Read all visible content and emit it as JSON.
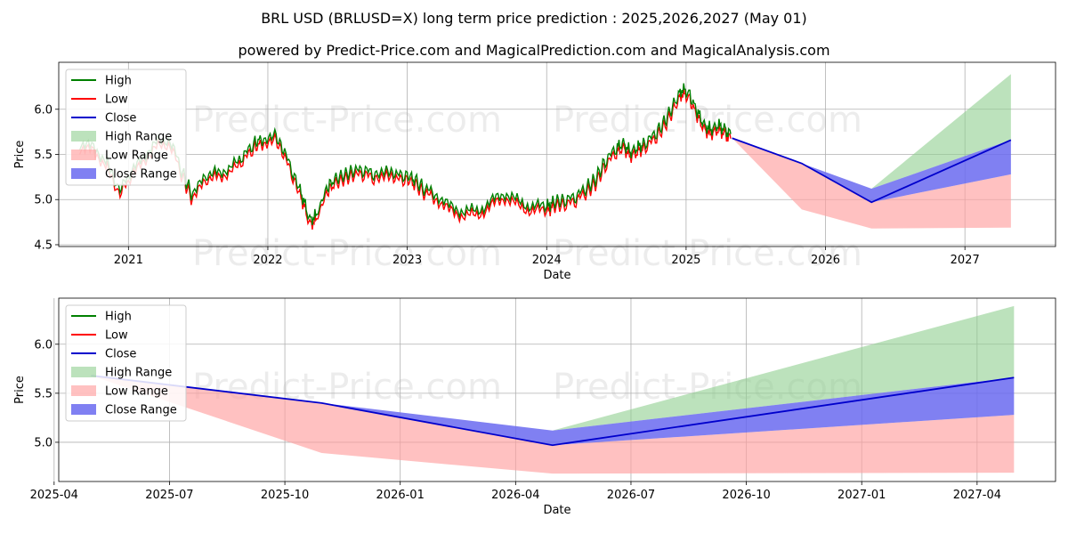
{
  "title": "BRL USD (BRLUSD=X) long term price prediction : 2025,2026,2027 (May 01)",
  "subtitle": "powered by Predict-Price.com and MagicalPrediction.com and MagicalAnalysis.com",
  "watermark": "Predict-Price.com",
  "colors": {
    "high": "#008000",
    "low": "#ff0000",
    "close": "#0000cc",
    "high_range": "#8fce8f",
    "low_range": "#ff9f9f",
    "close_range": "#6a6af0"
  },
  "chart_data": [
    {
      "type": "line",
      "title": "Historical prices and long term prediction",
      "xlabel": "Date",
      "ylabel": "Price",
      "xlim": [
        2020.5,
        2027.65
      ],
      "ylim": [
        4.48,
        6.52
      ],
      "x_ticks": [
        2021,
        2022,
        2023,
        2024,
        2025,
        2026,
        2027
      ],
      "x_tick_labels": [
        "2021",
        "2022",
        "2023",
        "2024",
        "2025",
        "2026",
        "2027"
      ],
      "y_ticks": [
        4.5,
        5.0,
        5.5,
        6.0
      ],
      "y_tick_labels": [
        "4.5",
        "5.0",
        "5.5",
        "6.0"
      ],
      "grid": true,
      "legend": [
        "High",
        "Low",
        "Close",
        "High Range",
        "Low Range",
        "Close Range"
      ],
      "legend_position": "top-left",
      "history": {
        "x": [
          2020.65,
          2020.75,
          2020.85,
          2020.92,
          2021.0,
          2021.1,
          2021.2,
          2021.3,
          2021.38,
          2021.45,
          2021.55,
          2021.62,
          2021.72,
          2021.82,
          2021.9,
          2021.96,
          2022.05,
          2022.12,
          2022.2,
          2022.25,
          2022.3,
          2022.35,
          2022.42,
          2022.48,
          2022.55,
          2022.62,
          2022.7,
          2022.78,
          2022.85,
          2022.92,
          2023.0,
          2023.05,
          2023.12,
          2023.2,
          2023.3,
          2023.4,
          2023.5,
          2023.6,
          2023.7,
          2023.8,
          2023.9,
          2024.0,
          2024.05,
          2024.12,
          2024.2,
          2024.28,
          2024.35,
          2024.42,
          2024.5,
          2024.55,
          2024.6,
          2024.65,
          2024.7,
          2024.78,
          2024.85,
          2024.92,
          2024.97,
          2025.02,
          2025.08,
          2025.13,
          2025.18,
          2025.23,
          2025.28,
          2025.32
        ],
        "close": [
          5.6,
          5.55,
          5.4,
          5.1,
          5.2,
          5.45,
          5.6,
          5.65,
          5.3,
          5.05,
          5.2,
          5.3,
          5.3,
          5.45,
          5.6,
          5.65,
          5.7,
          5.5,
          5.2,
          5.0,
          4.75,
          4.8,
          5.1,
          5.2,
          5.25,
          5.3,
          5.3,
          5.25,
          5.3,
          5.25,
          5.25,
          5.2,
          5.1,
          5.05,
          4.9,
          4.85,
          4.85,
          4.95,
          5.05,
          4.95,
          4.9,
          4.9,
          4.95,
          4.97,
          5.0,
          5.1,
          5.2,
          5.4,
          5.55,
          5.6,
          5.5,
          5.55,
          5.6,
          5.7,
          5.85,
          6.05,
          6.2,
          6.15,
          5.95,
          5.8,
          5.75,
          5.8,
          5.75,
          5.7
        ],
        "spread": 0.05
      },
      "forecast": {
        "x": [
          2025.33,
          2025.83,
          2026.33,
          2027.33
        ],
        "close": [
          5.68,
          5.4,
          4.97,
          5.66
        ],
        "high_range_upper": [
          5.68,
          5.4,
          5.12,
          6.39
        ],
        "close_range_upper": [
          5.68,
          5.4,
          5.12,
          5.66
        ],
        "close_range_lower": [
          5.68,
          5.4,
          4.97,
          5.28
        ],
        "low_range_lower": [
          5.68,
          4.89,
          4.68,
          4.69
        ]
      }
    },
    {
      "type": "area",
      "title": "Prediction detail",
      "xlabel": "Date",
      "ylabel": "Price",
      "xlim": [
        2025.26,
        2027.42
      ],
      "ylim": [
        4.6,
        6.47
      ],
      "x_ticks": [
        2025.25,
        2025.5,
        2025.75,
        2026.0,
        2026.25,
        2026.5,
        2026.75,
        2027.0,
        2027.25
      ],
      "x_tick_labels": [
        "2025-04",
        "2025-07",
        "2025-10",
        "2026-01",
        "2026-04",
        "2026-07",
        "2026-10",
        "2027-01",
        "2027-04"
      ],
      "y_ticks": [
        5.0,
        5.5,
        6.0
      ],
      "y_tick_labels": [
        "5.0",
        "5.5",
        "6.0"
      ],
      "grid": true,
      "legend": [
        "High",
        "Low",
        "Close",
        "High Range",
        "Low Range",
        "Close Range"
      ],
      "legend_position": "top-left",
      "forecast": {
        "x": [
          2025.33,
          2025.83,
          2026.33,
          2027.33
        ],
        "close": [
          5.68,
          5.4,
          4.97,
          5.66
        ],
        "high_range_upper": [
          5.68,
          5.4,
          5.12,
          6.39
        ],
        "close_range_upper": [
          5.68,
          5.4,
          5.12,
          5.66
        ],
        "close_range_lower": [
          5.68,
          5.4,
          4.97,
          5.28
        ],
        "low_range_lower": [
          5.68,
          4.89,
          4.68,
          4.69
        ]
      }
    }
  ]
}
